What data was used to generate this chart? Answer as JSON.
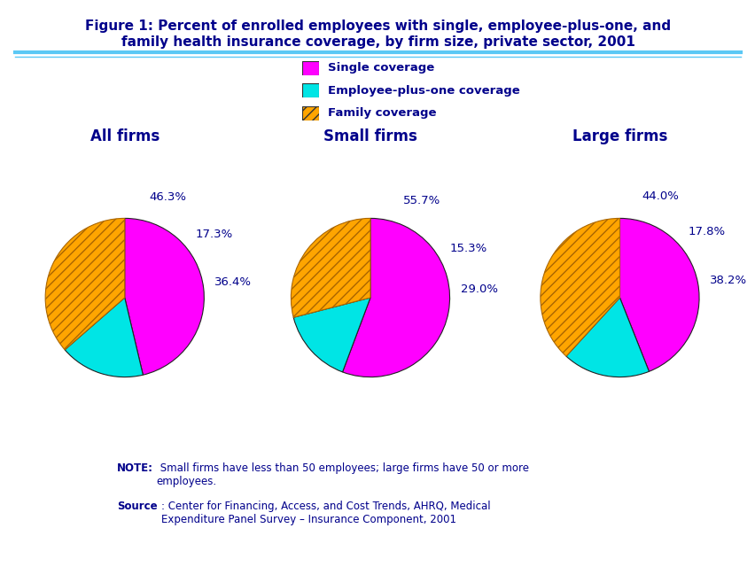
{
  "title_line1": "Figure 1: Percent of enrolled employees with single, employee-plus-one, and",
  "title_line2": "family health insurance coverage, by firm size, private sector, 2001",
  "title_color": "#00008B",
  "background_color": "#FFFFFF",
  "divider_color": "#5BC8F5",
  "pie_titles": [
    "All firms",
    "Small firms",
    "Large firms"
  ],
  "pie_title_color": "#00008B",
  "legend_labels": [
    "Single coverage",
    "Employee-plus-one coverage",
    "Family coverage"
  ],
  "legend_colors": [
    "#FF00FF",
    "#00E5E5",
    "#FFA500"
  ],
  "legend_hatch": [
    "",
    "",
    "///"
  ],
  "pie_data": [
    [
      46.3,
      17.3,
      36.4
    ],
    [
      55.7,
      15.3,
      29.0
    ],
    [
      44.0,
      17.8,
      38.2
    ]
  ],
  "pie_labels": [
    [
      "46.3%",
      "17.3%",
      "36.4%"
    ],
    [
      "55.7%",
      "15.3%",
      "29.0%"
    ],
    [
      "44.0%",
      "17.8%",
      "38.2%"
    ]
  ],
  "pie_colors": [
    "#FF00FF",
    "#00E5E5",
    "#FFA500"
  ],
  "pie_hatch": [
    "",
    "",
    "///"
  ],
  "pie_startangle": 90,
  "note_bold": "NOTE:",
  "note_text": " Small firms have less than 50 employees; large firms have 50 or more\nemployees.",
  "source_bold": "Source",
  "source_text": ": Center for Financing, Access, and Cost Trends, AHRQ, Medical\nExpenditure Panel Survey – Insurance Component, 2001",
  "note_color": "#00008B"
}
